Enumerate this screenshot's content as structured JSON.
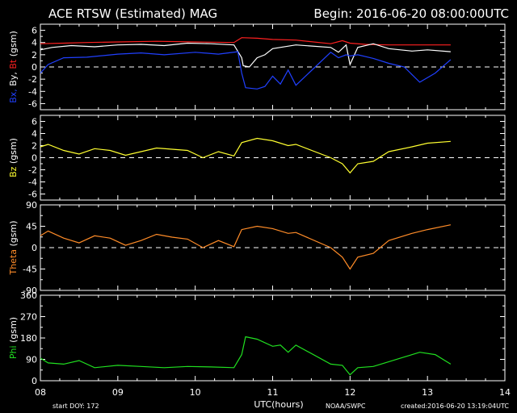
{
  "header": {
    "title": "ACE RTSW (Estimated) MAG",
    "begin": "Begin: 2016-06-20 08:00:00UTC"
  },
  "footer": {
    "start_doy": "start DOY:  172",
    "xlabel": "UTC(hours)",
    "org": "NOAA/SWPC",
    "created": "created:2016-06-20 13:19:04UTC"
  },
  "colors": {
    "background": "#000000",
    "axes": "#ffffff",
    "bx": "#2040ff",
    "by": "#ffffff",
    "bt": "#ff2020",
    "bz": "#ffff30",
    "theta": "#ff8c28",
    "phi": "#20e020"
  },
  "chart_data": [
    {
      "type": "line",
      "ylabel": [
        "Bx,",
        "By,",
        "Bt",
        "(gsm)"
      ],
      "ylim": [
        -7,
        7
      ],
      "yticks": [
        -6,
        -4,
        -2,
        0,
        2,
        4,
        6
      ],
      "xlim": [
        8,
        14
      ],
      "xticks": [
        "08",
        "09",
        "10",
        "11",
        "12",
        "13",
        "14"
      ],
      "zero_line": true,
      "series": [
        {
          "name": "Bt",
          "color": "#ff2020",
          "x": [
            8.0,
            8.3,
            8.6,
            9.0,
            9.5,
            10.0,
            10.5,
            10.6,
            10.8,
            11.0,
            11.3,
            11.75,
            11.9,
            12.0,
            12.2,
            12.5,
            12.8,
            13.0,
            13.3
          ],
          "y": [
            3.8,
            3.9,
            4.0,
            4.1,
            4.2,
            4.1,
            4.0,
            4.8,
            4.7,
            4.5,
            4.4,
            3.8,
            4.3,
            3.9,
            3.7,
            3.6,
            3.6,
            3.6,
            3.6
          ]
        },
        {
          "name": "By",
          "color": "#ffffff",
          "x": [
            8.0,
            8.15,
            8.4,
            8.7,
            9.0,
            9.3,
            9.6,
            9.9,
            10.2,
            10.5,
            10.6,
            10.62,
            10.7,
            10.8,
            10.9,
            11.0,
            11.3,
            11.75,
            11.85,
            11.95,
            12.0,
            12.1,
            12.3,
            12.5,
            12.8,
            13.0,
            13.3
          ],
          "y": [
            2.8,
            3.2,
            3.5,
            3.3,
            3.6,
            3.7,
            3.5,
            3.9,
            3.8,
            3.6,
            1.5,
            0.2,
            0.0,
            1.5,
            2.0,
            3.0,
            3.6,
            3.2,
            2.4,
            3.6,
            0.4,
            3.2,
            3.8,
            3.0,
            2.6,
            2.8,
            2.5
          ]
        },
        {
          "name": "Bx",
          "color": "#2040ff",
          "x": [
            8.0,
            8.1,
            8.3,
            8.6,
            9.0,
            9.3,
            9.6,
            10.0,
            10.3,
            10.55,
            10.6,
            10.65,
            10.8,
            10.9,
            11.0,
            11.1,
            11.2,
            11.3,
            11.75,
            11.85,
            11.95,
            12.0,
            12.1,
            12.3,
            12.5,
            12.7,
            12.9,
            13.1,
            13.3
          ],
          "y": [
            -1.0,
            0.4,
            1.5,
            1.6,
            2.1,
            2.3,
            2.0,
            2.4,
            2.1,
            2.5,
            -1.0,
            -3.4,
            -3.6,
            -3.2,
            -1.5,
            -2.8,
            -0.5,
            -3.0,
            2.4,
            1.5,
            2.0,
            1.8,
            2.0,
            1.4,
            0.6,
            0.0,
            -2.5,
            -1.0,
            1.2
          ]
        }
      ]
    },
    {
      "type": "line",
      "ylabel": [
        "Bz",
        "(gsm)"
      ],
      "ylim": [
        -7,
        7
      ],
      "yticks": [
        -6,
        -4,
        -2,
        0,
        2,
        4,
        6
      ],
      "xlim": [
        8,
        14
      ],
      "xticks": [
        "08",
        "09",
        "10",
        "11",
        "12",
        "13",
        "14"
      ],
      "zero_line": true,
      "series": [
        {
          "name": "Bz",
          "color": "#ffff30",
          "x": [
            8.0,
            8.1,
            8.3,
            8.5,
            8.7,
            8.9,
            9.1,
            9.3,
            9.5,
            9.7,
            9.9,
            10.1,
            10.3,
            10.5,
            10.6,
            10.8,
            11.0,
            11.2,
            11.3,
            11.75,
            11.9,
            12.0,
            12.1,
            12.3,
            12.5,
            12.8,
            13.0,
            13.3
          ],
          "y": [
            1.8,
            2.2,
            1.2,
            0.6,
            1.5,
            1.2,
            0.4,
            1.0,
            1.6,
            1.4,
            1.2,
            0.0,
            1.0,
            0.3,
            2.5,
            3.2,
            2.8,
            2.0,
            2.2,
            0.0,
            -1.0,
            -2.5,
            -1.0,
            -0.6,
            1.0,
            1.8,
            2.4,
            2.7
          ]
        }
      ]
    },
    {
      "type": "line",
      "ylabel": [
        "Theta",
        "(gsm)"
      ],
      "ylim": [
        -90,
        90
      ],
      "yticks": [
        -90,
        -45,
        0,
        45,
        90
      ],
      "xlim": [
        8,
        14
      ],
      "xticks": [
        "08",
        "09",
        "10",
        "11",
        "12",
        "13",
        "14"
      ],
      "zero_line": true,
      "series": [
        {
          "name": "Theta",
          "color": "#ff8c28",
          "x": [
            8.0,
            8.1,
            8.3,
            8.5,
            8.7,
            8.9,
            9.1,
            9.3,
            9.5,
            9.7,
            9.9,
            10.1,
            10.3,
            10.5,
            10.6,
            10.8,
            11.0,
            11.2,
            11.3,
            11.75,
            11.9,
            12.0,
            12.1,
            12.3,
            12.5,
            12.8,
            13.0,
            13.3
          ],
          "y": [
            25,
            35,
            20,
            10,
            25,
            20,
            5,
            15,
            28,
            22,
            18,
            0,
            15,
            2,
            38,
            45,
            40,
            30,
            32,
            0,
            -20,
            -45,
            -20,
            -12,
            15,
            30,
            38,
            48
          ]
        }
      ]
    },
    {
      "type": "line",
      "ylabel": [
        "Phi",
        "(gsm)"
      ],
      "ylim": [
        0,
        360
      ],
      "yticks": [
        0,
        90,
        180,
        270,
        360
      ],
      "xlim": [
        8,
        14
      ],
      "xticks": [
        "08",
        "09",
        "10",
        "11",
        "12",
        "13",
        "14"
      ],
      "zero_line": false,
      "series": [
        {
          "name": "Phi",
          "color": "#20e020",
          "x": [
            8.0,
            8.1,
            8.3,
            8.5,
            8.7,
            9.0,
            9.3,
            9.6,
            9.9,
            10.2,
            10.5,
            10.6,
            10.65,
            10.8,
            11.0,
            11.1,
            11.2,
            11.3,
            11.75,
            11.9,
            12.0,
            12.1,
            12.3,
            12.5,
            12.7,
            12.9,
            13.1,
            13.3
          ],
          "y": [
            95,
            75,
            70,
            85,
            55,
            65,
            60,
            55,
            60,
            58,
            55,
            110,
            185,
            175,
            145,
            150,
            120,
            150,
            70,
            65,
            25,
            55,
            60,
            80,
            100,
            120,
            110,
            70
          ]
        }
      ]
    }
  ]
}
